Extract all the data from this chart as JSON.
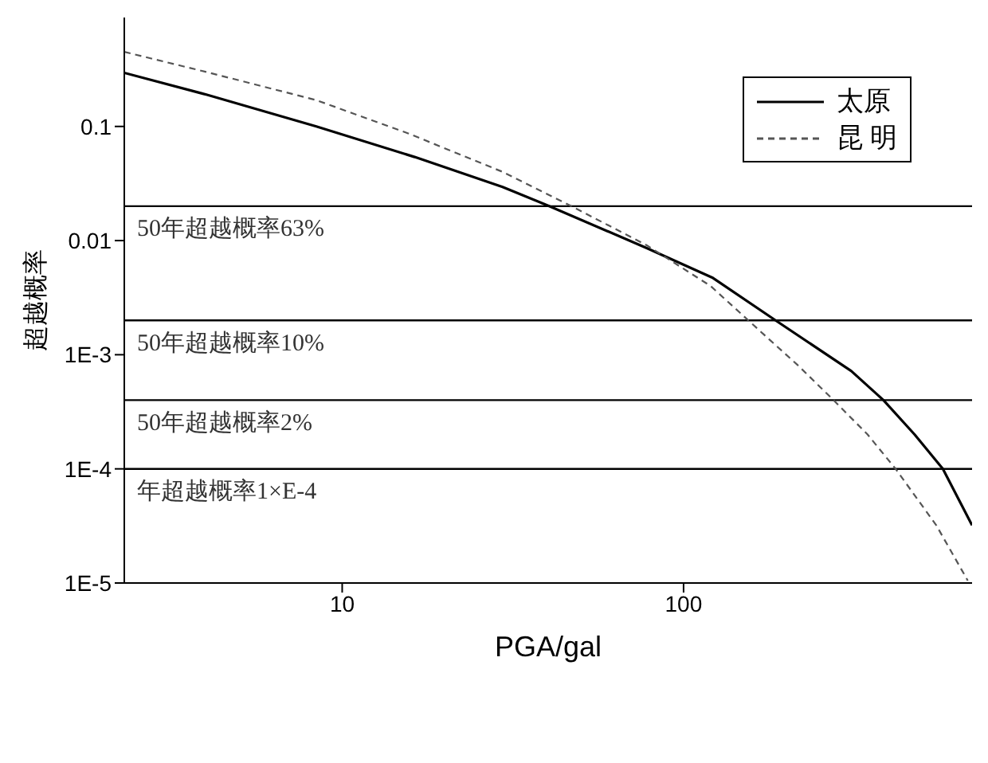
{
  "chart_data": {
    "type": "line",
    "xlabel": "PGA/gal",
    "ylabel": "超越概率",
    "log": "xy",
    "xlim": [
      2.3,
      700
    ],
    "xticks": [
      10,
      100
    ],
    "ylim": [
      1e-05,
      0.9
    ],
    "yticks": [
      {
        "value": 1e-05,
        "label": "1E-5"
      },
      {
        "value": 0.0001,
        "label": "1E-4"
      },
      {
        "value": 0.001,
        "label": "1E-3"
      },
      0.01,
      0.1
    ],
    "legend": "top right",
    "grid": false,
    "series": [
      {
        "name": "太原",
        "color": "#000000",
        "line_style": "solid",
        "x": [
          2.3,
          4.0,
          8.4,
          16.3,
          29.5,
          40.5,
          78,
          122,
          186,
          310,
          385,
          475,
          575,
          700
        ],
        "values": [
          0.295,
          0.19,
          0.1,
          0.054,
          0.0295,
          0.02,
          0.0086,
          0.0047,
          0.002,
          0.00072,
          0.0004,
          0.0002,
          0.0001,
          3.2e-05
        ]
      },
      {
        "name": "昆 明",
        "color": "#555555",
        "line_style": "dashed",
        "x": [
          2.3,
          4.0,
          8.4,
          15.6,
          29.5,
          47,
          78,
          120,
          172,
          217,
          275,
          346,
          418,
          550,
          680
        ],
        "values": [
          0.45,
          0.3,
          0.17,
          0.087,
          0.04,
          0.02,
          0.0091,
          0.004,
          0.0015,
          0.0008,
          0.0004,
          0.0002,
          0.0001,
          3.2e-05,
          1.05e-05
        ]
      }
    ],
    "ref_lines": [
      {
        "axis": "y",
        "value": 0.02,
        "label": "50年超越概率63%",
        "color": "#000000"
      },
      {
        "axis": "y",
        "value": 0.002,
        "label": "50年超越概率10%",
        "color": "#000000"
      },
      {
        "axis": "y",
        "value": 0.0004,
        "label": "50年超越概率2%",
        "color": "#000000"
      },
      {
        "axis": "y",
        "value": 0.0001,
        "label": "年超越概率1×E-4",
        "color": "#000000"
      }
    ]
  }
}
